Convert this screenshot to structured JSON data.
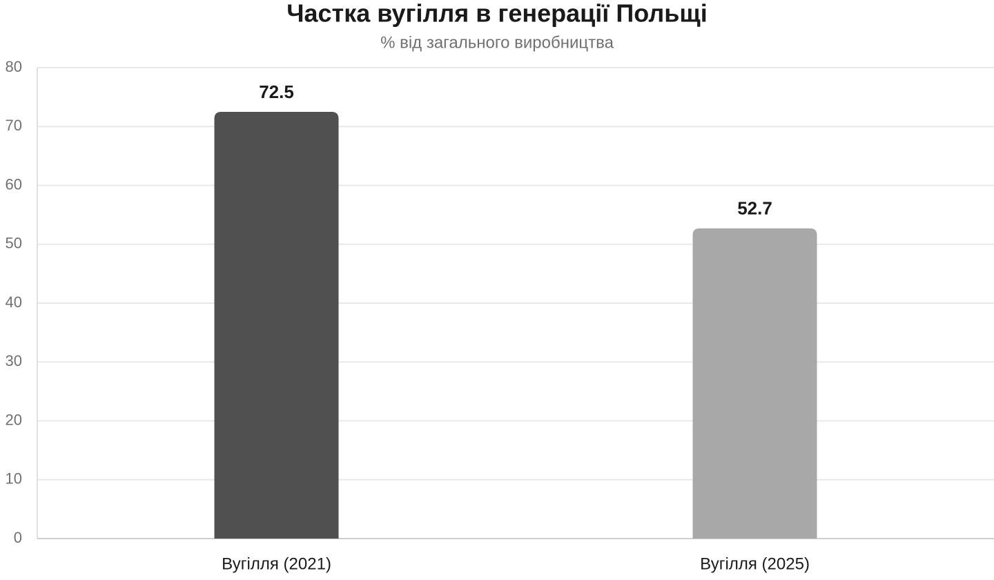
{
  "chart_data": {
    "type": "bar",
    "title": "Частка вугілля в генерації Польщі",
    "subtitle": "% від загального виробництва",
    "categories": [
      "Вугілля (2021)",
      "Вугілля (2025)"
    ],
    "values": [
      72.5,
      52.7
    ],
    "colors": [
      "#505050",
      "#a8a8a8"
    ],
    "ylim": [
      0,
      80
    ],
    "yticks": [
      0,
      10,
      20,
      30,
      40,
      50,
      60,
      70,
      80
    ],
    "grid": true
  }
}
